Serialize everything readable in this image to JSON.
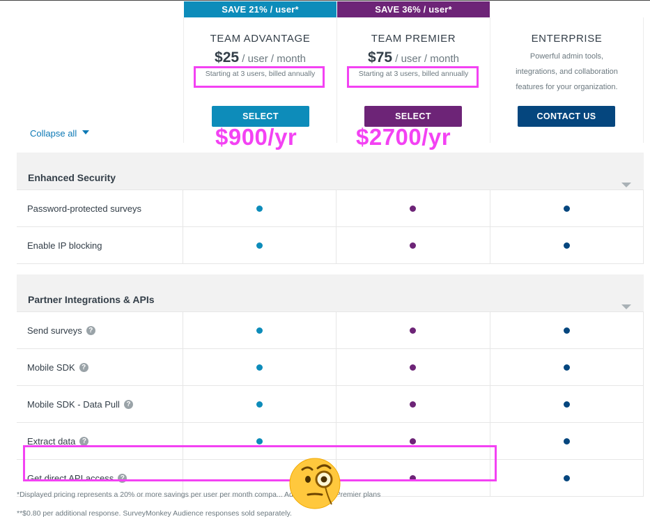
{
  "badges": {
    "advantage": "SAVE 21% / user*",
    "premier": "SAVE 36% / user*"
  },
  "plans": {
    "advantage": {
      "name": "TEAM ADVANTAGE",
      "price": "$25",
      "unit": " / user / month",
      "note": "Starting at 3 users, billed annually",
      "button": "SELECT",
      "annual": "$900/yr"
    },
    "premier": {
      "name": "TEAM PREMIER",
      "price": "$75",
      "unit": " / user / month",
      "note": "Starting at 3 users, billed annually",
      "button": "SELECT",
      "annual": "$2700/yr"
    },
    "enterprise": {
      "name": "ENTERPRISE",
      "desc_lines": [
        "Powerful admin tools,",
        "integrations, and collaboration",
        "features for your organization."
      ],
      "button": "CONTACT US"
    }
  },
  "collapse_all": "Collapse all",
  "sections": [
    {
      "title": "Enhanced Security",
      "rows": [
        {
          "label": "Password-protected surveys",
          "help": false,
          "advantage": true,
          "premier": true,
          "enterprise": true
        },
        {
          "label": "Enable IP blocking",
          "help": false,
          "advantage": true,
          "premier": true,
          "enterprise": true
        }
      ]
    },
    {
      "title": "Partner Integrations & APIs",
      "rows": [
        {
          "label": "Send surveys",
          "help": true,
          "advantage": true,
          "premier": true,
          "enterprise": true
        },
        {
          "label": "Mobile SDK",
          "help": true,
          "advantage": true,
          "premier": true,
          "enterprise": true
        },
        {
          "label": "Mobile SDK - Data Pull",
          "help": true,
          "advantage": true,
          "premier": true,
          "enterprise": true
        },
        {
          "label": "Extract data",
          "help": true,
          "advantage": true,
          "premier": true,
          "enterprise": true
        },
        {
          "label": "Get direct API access",
          "help": true,
          "advantage": false,
          "premier": true,
          "enterprise": true
        }
      ]
    }
  ],
  "footnotes": [
    "*Displayed pricing represents a 20% or more savings per user per month compa... Advantage and Premier plans",
    "**$0.80 per additional response. SurveyMonkey Audience responses sold separately."
  ],
  "help_glyph": "?",
  "icons": {
    "help": "question-circle-icon",
    "emoji": "face-with-monocle-icon"
  },
  "colors": {
    "teal": "#0d8cba",
    "purple": "#6d2477",
    "navy": "#05467e",
    "highlight": "#f342f3"
  }
}
